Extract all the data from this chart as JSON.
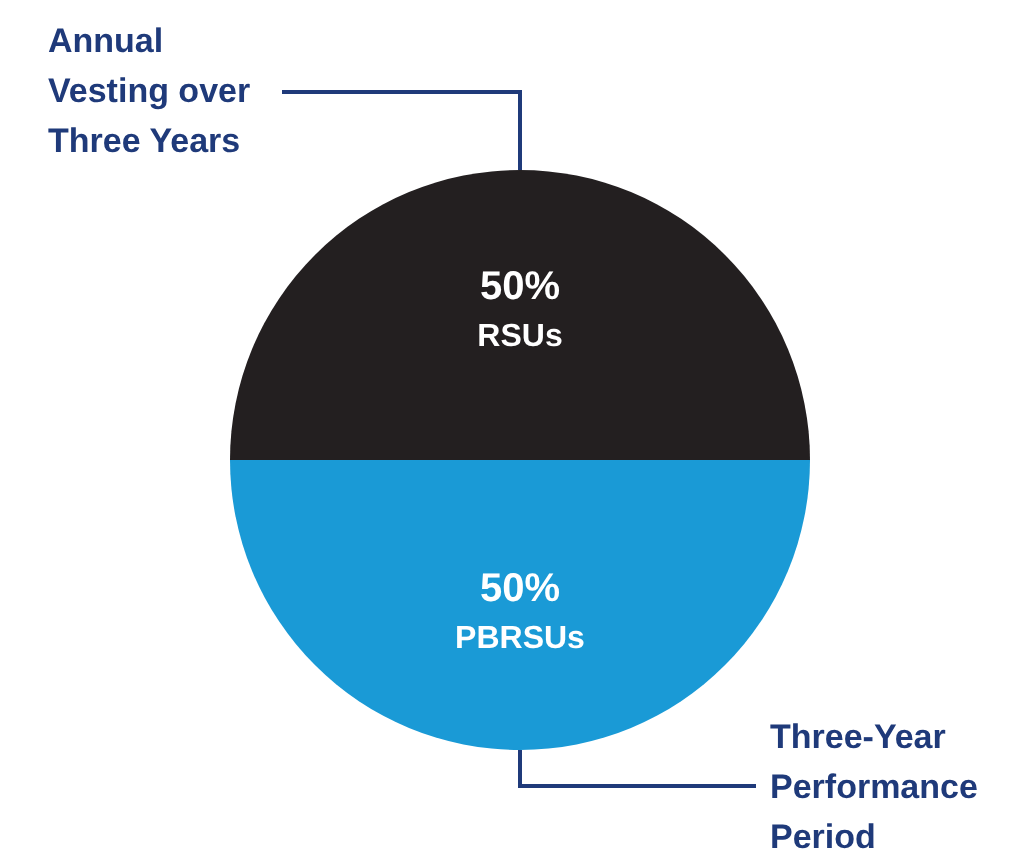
{
  "chart_data": {
    "type": "pie",
    "categories": [
      "RSUs",
      "PBRSUs"
    ],
    "values": [
      50,
      50
    ],
    "colors": [
      "#231f20",
      "#1a9ad6"
    ],
    "value_labels": [
      "50%",
      "50%"
    ],
    "annotations": [
      "Annual Vesting over Three Years",
      "Three-Year Performance Period"
    ]
  }
}
